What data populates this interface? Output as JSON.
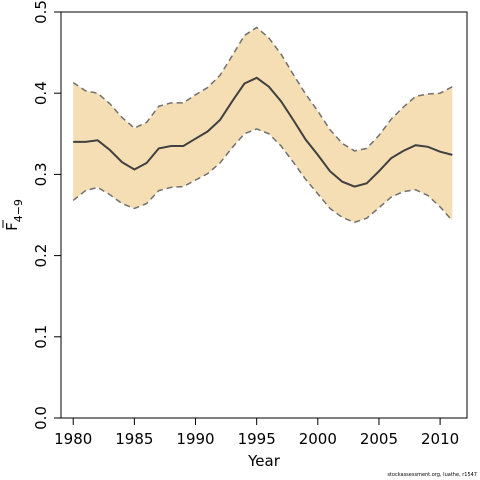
{
  "chart_data": {
    "type": "line",
    "xlabel": "Year",
    "ylabel_main": "F",
    "ylabel_sub": "4−9",
    "xlim": [
      1979,
      2012.2
    ],
    "ylim": [
      0,
      0.5
    ],
    "x_ticks": [
      1980,
      1985,
      1990,
      1995,
      2000,
      2005,
      2010
    ],
    "x_tick_labels": [
      "1980",
      "1985",
      "1990",
      "1995",
      "2000",
      "2005",
      "2010"
    ],
    "y_ticks": [
      0,
      0.1,
      0.2,
      0.3,
      0.4,
      0.5
    ],
    "y_tick_labels": [
      "0.0",
      "0.1",
      "0.2",
      "0.3",
      "0.4",
      "0.5"
    ],
    "grid": false,
    "band_color": "#f5deb3",
    "line_color": "#404040",
    "bound_color": "#707070",
    "x": [
      1980,
      1981,
      1982,
      1983,
      1984,
      1985,
      1986,
      1987,
      1988,
      1989,
      1990,
      1991,
      1992,
      1993,
      1994,
      1995,
      1996,
      1997,
      1998,
      1999,
      2000,
      2001,
      2002,
      2003,
      2004,
      2005,
      2006,
      2007,
      2008,
      2009,
      2010,
      2011
    ],
    "series": [
      {
        "role": "estimate",
        "values": [
          0.34,
          0.34,
          0.342,
          0.33,
          0.315,
          0.306,
          0.314,
          0.332,
          0.335,
          0.335,
          0.344,
          0.353,
          0.367,
          0.39,
          0.412,
          0.419,
          0.408,
          0.39,
          0.367,
          0.343,
          0.324,
          0.304,
          0.291,
          0.285,
          0.289,
          0.304,
          0.32,
          0.329,
          0.336,
          0.334,
          0.328,
          0.324
        ]
      },
      {
        "role": "upper",
        "values": [
          0.413,
          0.403,
          0.4,
          0.387,
          0.37,
          0.357,
          0.364,
          0.384,
          0.388,
          0.388,
          0.398,
          0.407,
          0.422,
          0.446,
          0.471,
          0.481,
          0.468,
          0.448,
          0.423,
          0.399,
          0.378,
          0.355,
          0.338,
          0.329,
          0.332,
          0.348,
          0.368,
          0.383,
          0.396,
          0.399,
          0.4,
          0.408
        ]
      },
      {
        "role": "lower",
        "values": [
          0.268,
          0.28,
          0.284,
          0.275,
          0.264,
          0.258,
          0.264,
          0.28,
          0.284,
          0.285,
          0.293,
          0.301,
          0.314,
          0.333,
          0.35,
          0.356,
          0.35,
          0.335,
          0.315,
          0.294,
          0.276,
          0.258,
          0.247,
          0.241,
          0.246,
          0.259,
          0.272,
          0.279,
          0.281,
          0.274,
          0.26,
          0.243
        ]
      }
    ]
  },
  "credit": "stockassessment.org, Iuathe, r1547"
}
